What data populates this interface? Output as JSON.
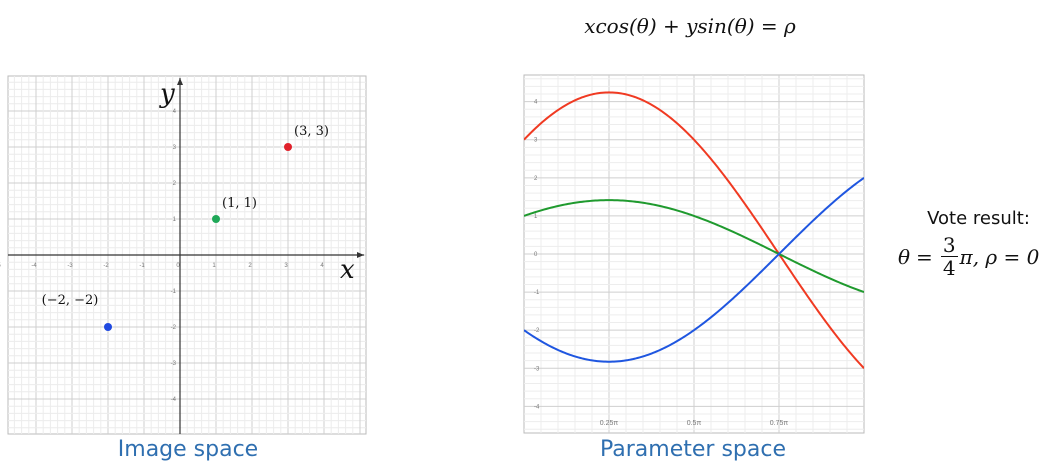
{
  "equation": "xcos(θ) + ysin(θ) = ρ",
  "image_space": {
    "caption": "Image space",
    "x_axis_label": "x",
    "y_axis_label": "y",
    "x_ticks": [
      "-5",
      "-4",
      "-3",
      "-2",
      "-1",
      "0",
      "1",
      "2",
      "3",
      "4"
    ],
    "y_ticks": [
      "4",
      "3",
      "2",
      "1",
      "-1",
      "-2",
      "-3",
      "-4"
    ],
    "points": [
      {
        "label": "(3, 3)",
        "x": 3,
        "y": 3,
        "color": "#e0202a"
      },
      {
        "label": "(1, 1)",
        "x": 1,
        "y": 1,
        "color": "#1fa858"
      },
      {
        "label": "(−2, −2)",
        "x": -2,
        "y": -2,
        "color": "#1f49e0"
      }
    ]
  },
  "parameter_space": {
    "caption": "Parameter space",
    "x_ticks": [
      "0.25π",
      "0.5π",
      "0.75π"
    ],
    "y_ticks": [
      "4",
      "3",
      "2",
      "1",
      "0",
      "-1",
      "-2",
      "-3",
      "-4"
    ],
    "chart_data": {
      "type": "line",
      "x_range_pi": [
        0,
        1
      ],
      "ylim": [
        -4.7,
        4.7
      ],
      "series": [
        {
          "point_x": 3,
          "point_y": 3,
          "color": "#f03a22"
        },
        {
          "point_x": 1,
          "point_y": 1,
          "color": "#1f9a2e"
        },
        {
          "point_x": -2,
          "point_y": -2,
          "color": "#1f56e0"
        }
      ]
    }
  },
  "vote": {
    "title": "Vote result:",
    "theta_symbol": "θ",
    "equals": "=",
    "numerator": "3",
    "denominator": "4",
    "suffix": "π, ρ = 0"
  }
}
